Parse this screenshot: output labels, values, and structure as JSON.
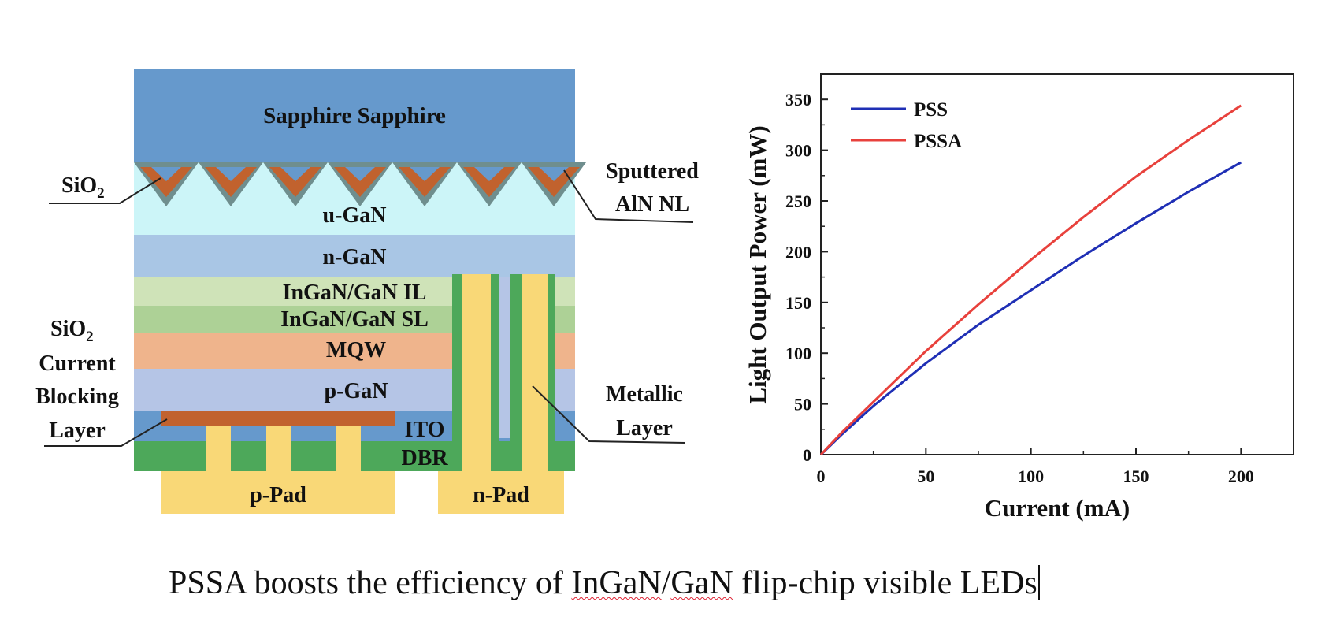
{
  "diagram": {
    "layers": {
      "sapphire": "Sapphire Sapphire",
      "u_gan": "u-GaN",
      "n_gan": "n-GaN",
      "il": "InGaN/GaN IL",
      "sl": "InGaN/GaN SL",
      "mqw": "MQW",
      "p_gan": "p-GaN",
      "ito": "ITO",
      "dbr": "DBR",
      "p_pad": "p-Pad",
      "n_pad": "n-Pad"
    },
    "callouts": {
      "sio2_sub": "SiO",
      "sio2_sub_digit": "2",
      "sputtered_1": "Sputtered",
      "sputtered_2": "AlN NL",
      "cbl_1": "SiO",
      "cbl_1_digit": "2",
      "cbl_2": "Current",
      "cbl_3": "Blocking",
      "cbl_4": "Layer",
      "metal_1": "Metallic",
      "metal_2": "Layer"
    },
    "colors": {
      "sapphire": "#6699cc",
      "u_gan": "#ccf5f8",
      "n_gan": "#a9c6e5",
      "il": "#cfe3b8",
      "sl": "#add196",
      "mqw": "#efb48c",
      "p_gan": "#b5c5e6",
      "ito": "#6699cc",
      "dbr": "#4da85a",
      "pad": "#f9d877",
      "cbl": "#c1622e",
      "sio2_film": "#6f8e8e"
    }
  },
  "chart_data": {
    "type": "line",
    "xlabel": "Current (mA)",
    "ylabel": "Light Output Power (mW)",
    "xlim": [
      0,
      225
    ],
    "ylim": [
      0,
      375
    ],
    "xticks": [
      0,
      50,
      100,
      150,
      200
    ],
    "yticks": [
      0,
      50,
      100,
      150,
      200,
      250,
      300,
      350
    ],
    "grid": false,
    "legend": "top-left",
    "series": [
      {
        "name": "PSS",
        "color": "#1f2fb5",
        "x": [
          0,
          10,
          25,
          50,
          75,
          100,
          125,
          150,
          175,
          200
        ],
        "y": [
          0,
          20,
          48,
          90,
          128,
          162,
          196,
          228,
          259,
          288
        ]
      },
      {
        "name": "PSSA",
        "color": "#e8413c",
        "x": [
          0,
          10,
          25,
          50,
          75,
          100,
          125,
          150,
          175,
          200
        ],
        "y": [
          0,
          22,
          52,
          102,
          148,
          192,
          234,
          274,
          310,
          344
        ]
      }
    ]
  },
  "caption": {
    "part1": "PSSA boosts the efficiency of ",
    "word1": "InGaN",
    "slash": "/",
    "word2": "GaN",
    "part2": " flip-chip visible LEDs"
  }
}
